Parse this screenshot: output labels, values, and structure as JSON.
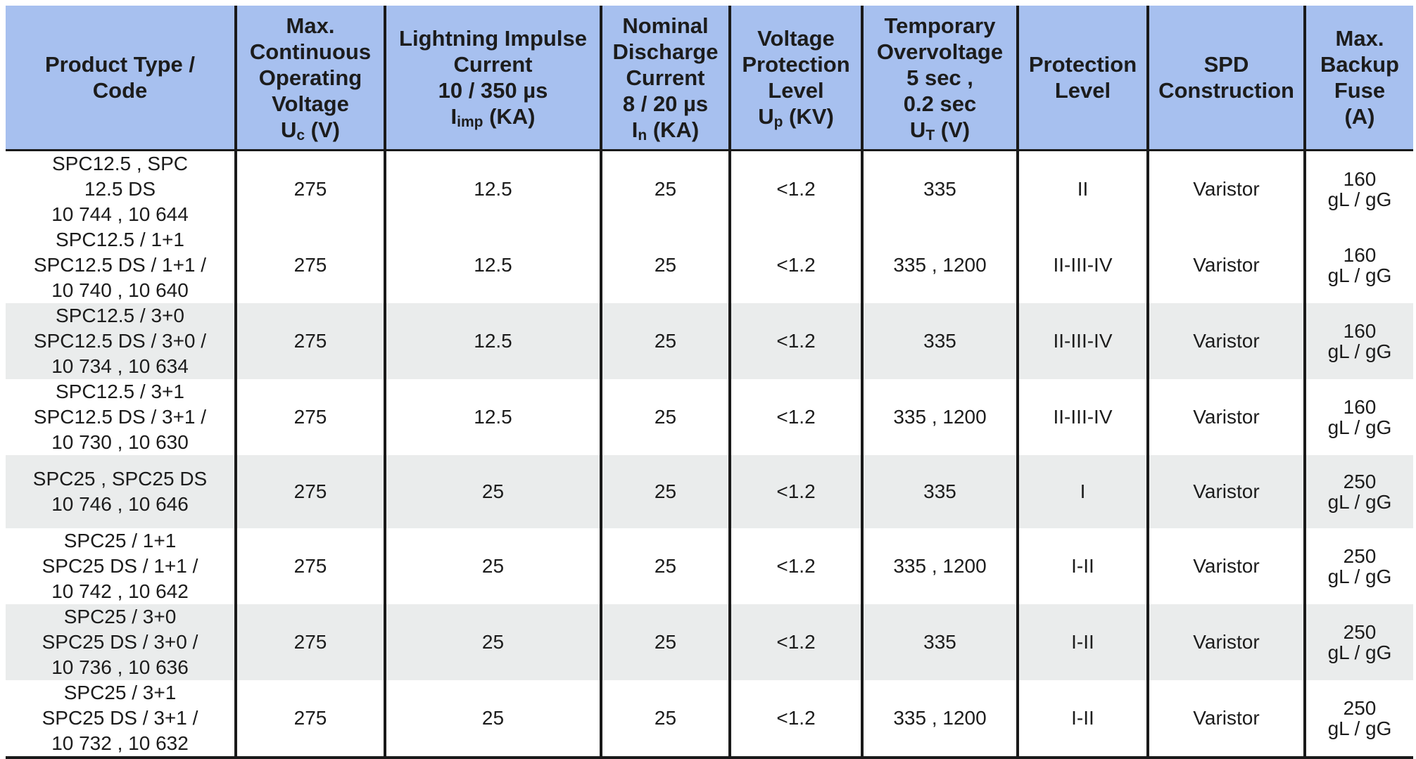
{
  "headers": [
    {
      "lines": [
        "Product Type /",
        "Code"
      ]
    },
    {
      "lines": [
        "Max.",
        "Continuous",
        "Operating",
        "Voltage"
      ],
      "symbol": "U",
      "sub": "c",
      "unit": " (V)"
    },
    {
      "lines": [
        "Lightning Impulse",
        "Current",
        "10 / 350 µs"
      ],
      "symbol": "I",
      "sub": "imp",
      "unit": " (KA)"
    },
    {
      "lines": [
        "Nominal",
        "Discharge",
        "Current",
        "8 / 20 µs"
      ],
      "symbol": "I",
      "sub": "n",
      "unit": " (KA)"
    },
    {
      "lines": [
        "Voltage",
        "Protection",
        "Level"
      ],
      "symbol": "U",
      "sub": "p",
      "unit": " (KV)"
    },
    {
      "lines": [
        "Temporary",
        "Overvoltage",
        "5 sec ,",
        "0.2 sec"
      ],
      "symbol": "U",
      "sub": "T",
      "unit": " (V)"
    },
    {
      "lines": [
        "Protection",
        "Level"
      ]
    },
    {
      "lines": [
        "SPD",
        "Construction"
      ]
    },
    {
      "lines": [
        "Max.",
        "Backup",
        "Fuse",
        "(A)"
      ]
    }
  ],
  "rows": [
    {
      "product": [
        "SPC12.5 , SPC",
        "12.5 DS",
        "10 744 , 10 644"
      ],
      "uc": "275",
      "imp": "12.5",
      "in": "25",
      "up": "<1.2",
      "ut": "335",
      "level": "II",
      "construction": "Varistor",
      "fuse": [
        "160",
        "gL / gG"
      ]
    },
    {
      "product": [
        "SPC12.5 / 1+1",
        "SPC12.5 DS / 1+1 /",
        "10 740 , 10 640"
      ],
      "uc": "275",
      "imp": "12.5",
      "in": "25",
      "up": "<1.2",
      "ut": "335 , 1200",
      "level": "II-III-IV",
      "construction": "Varistor",
      "fuse": [
        "160",
        "gL / gG"
      ]
    },
    {
      "product": [
        "SPC12.5 / 3+0",
        "SPC12.5 DS / 3+0 /",
        "10 734 , 10 634"
      ],
      "uc": "275",
      "imp": "12.5",
      "in": "25",
      "up": "<1.2",
      "ut": "335",
      "level": "II-III-IV",
      "construction": "Varistor",
      "fuse": [
        "160",
        "gL / gG"
      ]
    },
    {
      "product": [
        "SPC12.5 / 3+1",
        "SPC12.5 DS / 3+1 /",
        "10 730 , 10 630"
      ],
      "uc": "275",
      "imp": "12.5",
      "in": "25",
      "up": "<1.2",
      "ut": "335 , 1200",
      "level": "II-III-IV",
      "construction": "Varistor",
      "fuse": [
        "160",
        "gL / gG"
      ]
    },
    {
      "product": [
        "SPC25 , SPC25 DS",
        "10 746 , 10 646"
      ],
      "uc": "275",
      "imp": "25",
      "in": "25",
      "up": "<1.2",
      "ut": "335",
      "level": "I",
      "construction": "Varistor",
      "fuse": [
        "250",
        "gL / gG"
      ]
    },
    {
      "product": [
        "SPC25 / 1+1",
        "SPC25 DS / 1+1 /",
        "10 742 , 10 642"
      ],
      "uc": "275",
      "imp": "25",
      "in": "25",
      "up": "<1.2",
      "ut": "335 , 1200",
      "level": "I-II",
      "construction": "Varistor",
      "fuse": [
        "250",
        "gL / gG"
      ]
    },
    {
      "product": [
        "SPC25 / 3+0",
        "SPC25 DS / 3+0 /",
        "10 736 , 10 636"
      ],
      "uc": "275",
      "imp": "25",
      "in": "25",
      "up": "<1.2",
      "ut": "335",
      "level": "I-II",
      "construction": "Varistor",
      "fuse": [
        "250",
        "gL / gG"
      ]
    },
    {
      "product": [
        "SPC25 / 3+1",
        "SPC25 DS / 3+1 /",
        "10 732 , 10 632"
      ],
      "uc": "275",
      "imp": "25",
      "in": "25",
      "up": "<1.2",
      "ut": "335 , 1200",
      "level": "I-II",
      "construction": "Varistor",
      "fuse": [
        "250",
        "gL / gG"
      ]
    }
  ],
  "colors": {
    "header_bg": "#a7c0ef",
    "shaded_row_bg": "#eaecec",
    "rule": "#1a1a1a"
  }
}
